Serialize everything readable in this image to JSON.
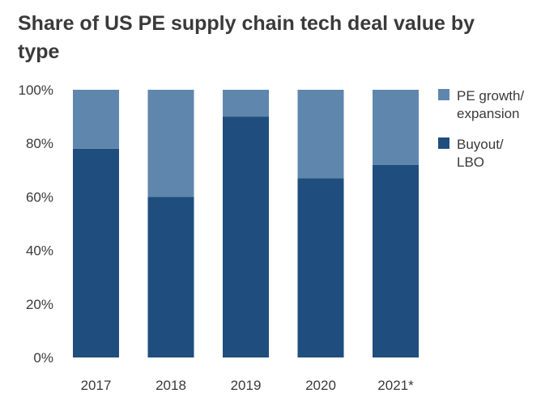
{
  "chart_data": {
    "type": "bar",
    "stacked": true,
    "title": "Share of US PE supply chain tech deal value by type",
    "xlabel": "",
    "ylabel": "",
    "categories": [
      "2017",
      "2018",
      "2019",
      "2020",
      "2021*"
    ],
    "ylim": [
      0,
      100
    ],
    "y_ticks": [
      "0%",
      "20%",
      "40%",
      "60%",
      "80%",
      "100%"
    ],
    "y_tick_values": [
      0,
      20,
      40,
      60,
      80,
      100
    ],
    "grid": false,
    "legend_position": "right",
    "series": [
      {
        "name": "Buyout/ LBO",
        "legend_lines": [
          "Buyout/",
          "LBO"
        ],
        "color": "#1f4e7e",
        "values": [
          78,
          60,
          90,
          67,
          72
        ]
      },
      {
        "name": "PE growth/ expansion",
        "legend_lines": [
          "PE growth/",
          "expansion"
        ],
        "color": "#5f87ad",
        "values": [
          22,
          40,
          10,
          33,
          28
        ]
      }
    ]
  }
}
